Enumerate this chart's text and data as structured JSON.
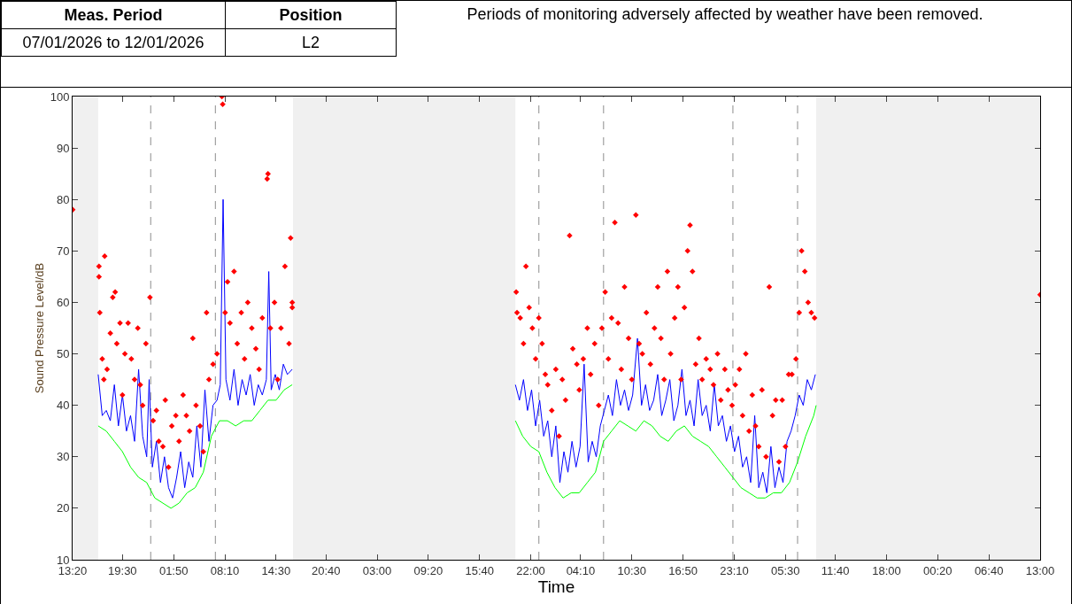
{
  "chart_data": {
    "type": "line",
    "xlabel": "Time",
    "ylabel": "Sound Pressure Level/dB",
    "annotations": [
      "Meas. Period",
      "Position",
      "07/01/2026 to 12/01/2026",
      "L2",
      "Periods of monitoring adversely affected by weather have been removed."
    ],
    "xlim": [
      "2026-01-07T13:20",
      "2026-01-12T13:00"
    ],
    "ylim": [
      10,
      100
    ],
    "xticks": [
      {
        "value": "2026-01-07T13:20",
        "label": "13:20"
      },
      {
        "value": "2026-01-07T19:30",
        "label": "19:30"
      },
      {
        "value": "2026-01-08T01:50",
        "label": "01:50"
      },
      {
        "value": "2026-01-08T08:10",
        "label": "08:10"
      },
      {
        "value": "2026-01-08T14:30",
        "label": "14:30"
      },
      {
        "value": "2026-01-08T20:40",
        "label": "20:40"
      },
      {
        "value": "2026-01-09T03:00",
        "label": "03:00"
      },
      {
        "value": "2026-01-09T09:20",
        "label": "09:20"
      },
      {
        "value": "2026-01-09T15:40",
        "label": "15:40"
      },
      {
        "value": "2026-01-09T22:00",
        "label": "22:00"
      },
      {
        "value": "2026-01-10T04:10",
        "label": "04:10"
      },
      {
        "value": "2026-01-10T10:30",
        "label": "10:30"
      },
      {
        "value": "2026-01-10T16:50",
        "label": "16:50"
      },
      {
        "value": "2026-01-10T23:10",
        "label": "23:10"
      },
      {
        "value": "2026-01-11T05:30",
        "label": "05:30"
      },
      {
        "value": "2026-01-11T11:40",
        "label": "11:40"
      },
      {
        "value": "2026-01-11T18:00",
        "label": "18:00"
      },
      {
        "value": "2026-01-12T00:20",
        "label": "00:20"
      },
      {
        "value": "2026-01-12T06:40",
        "label": "06:40"
      },
      {
        "value": "2026-01-12T13:00",
        "label": "13:00"
      }
    ],
    "yticks": [
      10,
      20,
      30,
      40,
      50,
      60,
      70,
      80,
      90,
      100
    ],
    "grid": false,
    "legend": false,
    "bands": [
      {
        "axis": "x",
        "from": "2026-01-07T13:20",
        "to": "2026-01-07T16:30",
        "color": "#f0f0f0"
      },
      {
        "axis": "x",
        "from": "2026-01-08T16:36",
        "to": "2026-01-09T20:06",
        "color": "#f0f0f0"
      },
      {
        "axis": "x",
        "from": "2026-01-11T09:18",
        "to": "2026-01-12T13:00",
        "color": "#f0f0f0"
      }
    ],
    "ref_lines": [
      {
        "axis": "x",
        "value": "2026-01-07T23:00",
        "color": "#a0a0a0",
        "line_style": "dashed"
      },
      {
        "axis": "x",
        "value": "2026-01-08T07:00",
        "color": "#a0a0a0",
        "line_style": "dashed"
      },
      {
        "axis": "x",
        "value": "2026-01-09T23:00",
        "color": "#a0a0a0",
        "line_style": "dashed"
      },
      {
        "axis": "x",
        "value": "2026-01-10T07:00",
        "color": "#a0a0a0",
        "line_style": "dashed"
      },
      {
        "axis": "x",
        "value": "2026-01-10T23:00",
        "color": "#a0a0a0",
        "line_style": "dashed"
      },
      {
        "axis": "x",
        "value": "2026-01-11T07:00",
        "color": "#a0a0a0",
        "line_style": "dashed"
      }
    ],
    "series": [
      {
        "marker": "none",
        "line_style": "solid",
        "color": "#00ff00",
        "x": [
          "2026-01-07T16:30",
          "2026-01-07T17:30",
          "2026-01-07T18:30",
          "2026-01-07T19:30",
          "2026-01-07T20:30",
          "2026-01-07T21:30",
          "2026-01-07T22:30",
          "2026-01-07T23:30",
          "2026-01-08T00:30",
          "2026-01-08T01:30",
          "2026-01-08T02:30",
          "2026-01-08T03:30",
          "2026-01-08T04:30",
          "2026-01-08T05:30",
          "2026-01-08T06:30",
          "2026-01-08T07:30",
          "2026-01-08T08:30",
          "2026-01-08T09:30",
          "2026-01-08T10:30",
          "2026-01-08T11:30",
          "2026-01-08T12:30",
          "2026-01-08T13:30",
          "2026-01-08T14:30",
          "2026-01-08T15:30",
          "2026-01-08T16:30",
          "2026-01-09T06:00",
          "2026-01-09T20:06",
          "2026-01-09T21:00",
          "2026-01-09T22:00",
          "2026-01-09T23:00",
          "2026-01-10T00:00",
          "2026-01-10T01:00",
          "2026-01-10T02:00",
          "2026-01-10T03:00",
          "2026-01-10T04:00",
          "2026-01-10T05:00",
          "2026-01-10T06:00",
          "2026-01-10T07:00",
          "2026-01-10T08:00",
          "2026-01-10T09:00",
          "2026-01-10T10:00",
          "2026-01-10T11:00",
          "2026-01-10T12:00",
          "2026-01-10T13:00",
          "2026-01-10T14:00",
          "2026-01-10T15:00",
          "2026-01-10T16:00",
          "2026-01-10T17:00",
          "2026-01-10T18:00",
          "2026-01-10T19:00",
          "2026-01-10T20:00",
          "2026-01-10T21:00",
          "2026-01-10T22:00",
          "2026-01-10T23:00",
          "2026-01-11T00:00",
          "2026-01-11T01:00",
          "2026-01-11T02:00",
          "2026-01-11T03:00",
          "2026-01-11T04:00",
          "2026-01-11T05:00",
          "2026-01-11T06:00",
          "2026-01-11T07:00",
          "2026-01-11T08:00",
          "2026-01-11T09:00",
          "2026-01-11T09:18"
        ],
        "values": [
          36,
          35,
          33,
          31,
          28,
          26,
          25,
          22,
          21,
          20,
          21,
          23,
          24,
          27,
          34,
          37,
          37,
          36,
          37,
          37,
          39,
          41,
          41,
          43,
          44,
          null,
          37,
          34,
          32,
          31,
          27,
          24,
          22,
          23,
          23,
          25,
          27,
          33,
          35,
          37,
          36,
          35,
          37,
          36,
          34,
          33,
          35,
          36,
          34,
          33,
          32,
          30,
          28,
          26,
          24,
          23,
          22,
          22,
          23,
          23,
          25,
          29,
          34,
          38,
          40
        ]
      },
      {
        "marker": "none",
        "line_style": "solid",
        "color": "#0000ff",
        "x": [
          "2026-01-07T16:30",
          "2026-01-07T17:00",
          "2026-01-07T17:30",
          "2026-01-07T18:00",
          "2026-01-07T18:30",
          "2026-01-07T19:00",
          "2026-01-07T19:30",
          "2026-01-07T20:00",
          "2026-01-07T20:30",
          "2026-01-07T21:00",
          "2026-01-07T21:30",
          "2026-01-07T22:00",
          "2026-01-07T22:30",
          "2026-01-07T22:48",
          "2026-01-07T23:12",
          "2026-01-07T23:42",
          "2026-01-08T00:12",
          "2026-01-08T00:42",
          "2026-01-08T01:12",
          "2026-01-08T01:42",
          "2026-01-08T02:12",
          "2026-01-08T02:42",
          "2026-01-08T03:12",
          "2026-01-08T03:42",
          "2026-01-08T04:12",
          "2026-01-08T04:42",
          "2026-01-08T05:12",
          "2026-01-08T05:42",
          "2026-01-08T06:12",
          "2026-01-08T06:42",
          "2026-01-08T07:12",
          "2026-01-08T07:36",
          "2026-01-08T07:57",
          "2026-01-08T08:18",
          "2026-01-08T08:48",
          "2026-01-08T09:18",
          "2026-01-08T09:48",
          "2026-01-08T10:18",
          "2026-01-08T10:48",
          "2026-01-08T11:18",
          "2026-01-08T11:48",
          "2026-01-08T12:18",
          "2026-01-08T12:48",
          "2026-01-08T13:18",
          "2026-01-08T13:36",
          "2026-01-08T13:54",
          "2026-01-08T14:24",
          "2026-01-08T14:54",
          "2026-01-08T15:24",
          "2026-01-08T15:54",
          "2026-01-08T16:30",
          "2026-01-09T06:00",
          "2026-01-09T20:06",
          "2026-01-09T20:36",
          "2026-01-09T21:06",
          "2026-01-09T21:36",
          "2026-01-09T22:06",
          "2026-01-09T22:36",
          "2026-01-09T23:06",
          "2026-01-09T23:36",
          "2026-01-10T00:06",
          "2026-01-10T00:36",
          "2026-01-10T01:06",
          "2026-01-10T01:36",
          "2026-01-10T02:06",
          "2026-01-10T02:36",
          "2026-01-10T03:06",
          "2026-01-10T03:36",
          "2026-01-10T04:06",
          "2026-01-10T04:36",
          "2026-01-10T05:06",
          "2026-01-10T05:36",
          "2026-01-10T06:06",
          "2026-01-10T06:36",
          "2026-01-10T07:06",
          "2026-01-10T07:36",
          "2026-01-10T08:06",
          "2026-01-10T08:36",
          "2026-01-10T09:06",
          "2026-01-10T09:36",
          "2026-01-10T10:06",
          "2026-01-10T10:36",
          "2026-01-10T11:12",
          "2026-01-10T11:42",
          "2026-01-10T12:12",
          "2026-01-10T12:42",
          "2026-01-10T13:12",
          "2026-01-10T13:42",
          "2026-01-10T14:12",
          "2026-01-10T14:42",
          "2026-01-10T15:12",
          "2026-01-10T15:42",
          "2026-01-10T16:12",
          "2026-01-10T16:42",
          "2026-01-10T17:12",
          "2026-01-10T17:42",
          "2026-01-10T18:12",
          "2026-01-10T18:42",
          "2026-01-10T19:12",
          "2026-01-10T19:42",
          "2026-01-10T20:12",
          "2026-01-10T20:42",
          "2026-01-10T21:12",
          "2026-01-10T21:42",
          "2026-01-10T22:12",
          "2026-01-10T22:42",
          "2026-01-10T23:12",
          "2026-01-10T23:42",
          "2026-01-11T00:12",
          "2026-01-11T00:42",
          "2026-01-11T01:12",
          "2026-01-11T01:42",
          "2026-01-11T02:12",
          "2026-01-11T02:42",
          "2026-01-11T03:12",
          "2026-01-11T03:42",
          "2026-01-11T04:12",
          "2026-01-11T04:42",
          "2026-01-11T05:12",
          "2026-01-11T05:42",
          "2026-01-11T06:12",
          "2026-01-11T06:42",
          "2026-01-11T07:12",
          "2026-01-11T07:42",
          "2026-01-11T08:12",
          "2026-01-11T08:42",
          "2026-01-11T09:12"
        ],
        "values": [
          46,
          38,
          39,
          37,
          44,
          36,
          42,
          35,
          38,
          33,
          47,
          34,
          30,
          45,
          28,
          33,
          25,
          30,
          24,
          22,
          26,
          31,
          24,
          29,
          26,
          36,
          28,
          43,
          33,
          40,
          41,
          44,
          80,
          45,
          41,
          47,
          40,
          45,
          42,
          46,
          40,
          44,
          42,
          45,
          66,
          43,
          46,
          43,
          48,
          46,
          47,
          null,
          44,
          41,
          45,
          39,
          43,
          36,
          41,
          34,
          37,
          30,
          36,
          25,
          31,
          27,
          33,
          28,
          32,
          48,
          29,
          33,
          30,
          36,
          39,
          42,
          38,
          45,
          40,
          43,
          39,
          42,
          53,
          40,
          44,
          39,
          41,
          46,
          38,
          41,
          45,
          37,
          40,
          47,
          38,
          41,
          36,
          45,
          38,
          40,
          35,
          44,
          36,
          38,
          33,
          36,
          31,
          34,
          28,
          30,
          25,
          38,
          24,
          27,
          23,
          32,
          24,
          28,
          25,
          33,
          35,
          38,
          42,
          40,
          45,
          43,
          46
        ]
      },
      {
        "type": "scatter",
        "marker": "diamond",
        "color": "#ff0000",
        "x": [
          "2026-01-07T13:21",
          "2026-01-07T16:36",
          "2026-01-07T16:36",
          "2026-01-07T17:18",
          "2026-01-07T16:42",
          "2026-01-07T17:00",
          "2026-01-07T17:12",
          "2026-01-07T17:36",
          "2026-01-07T18:00",
          "2026-01-07T18:18",
          "2026-01-07T18:36",
          "2026-01-07T18:48",
          "2026-01-07T19:12",
          "2026-01-07T19:30",
          "2026-01-07T19:48",
          "2026-01-07T20:12",
          "2026-01-07T20:36",
          "2026-01-07T21:00",
          "2026-01-07T21:24",
          "2026-01-07T21:42",
          "2026-01-07T22:00",
          "2026-01-07T22:24",
          "2026-01-07T22:54",
          "2026-01-07T23:18",
          "2026-01-07T23:42",
          "2026-01-08T00:00",
          "2026-01-08T00:30",
          "2026-01-08T00:48",
          "2026-01-08T01:12",
          "2026-01-08T01:36",
          "2026-01-08T02:06",
          "2026-01-08T02:30",
          "2026-01-08T03:00",
          "2026-01-08T03:24",
          "2026-01-08T03:48",
          "2026-01-08T04:12",
          "2026-01-08T04:36",
          "2026-01-08T05:06",
          "2026-01-08T05:30",
          "2026-01-08T05:54",
          "2026-01-08T06:12",
          "2026-01-08T06:42",
          "2026-01-08T07:12",
          "2026-01-08T07:48",
          "2026-01-08T07:54",
          "2026-01-08T08:12",
          "2026-01-08T08:30",
          "2026-01-08T08:48",
          "2026-01-08T09:18",
          "2026-01-08T09:42",
          "2026-01-08T10:12",
          "2026-01-08T10:36",
          "2026-01-08T11:00",
          "2026-01-08T11:30",
          "2026-01-08T12:00",
          "2026-01-08T12:24",
          "2026-01-08T12:48",
          "2026-01-08T13:24",
          "2026-01-08T13:30",
          "2026-01-08T13:48",
          "2026-01-08T14:18",
          "2026-01-08T14:42",
          "2026-01-08T15:06",
          "2026-01-08T15:36",
          "2026-01-08T16:06",
          "2026-01-08T16:18",
          "2026-01-08T16:30",
          "2026-01-08T16:30",
          "2026-01-09T20:12",
          "2026-01-09T20:18",
          "2026-01-09T20:42",
          "2026-01-09T21:06",
          "2026-01-09T21:24",
          "2026-01-09T21:48",
          "2026-01-09T22:12",
          "2026-01-09T22:36",
          "2026-01-09T23:00",
          "2026-01-09T23:24",
          "2026-01-09T23:48",
          "2026-01-10T00:06",
          "2026-01-10T00:36",
          "2026-01-10T01:06",
          "2026-01-10T01:30",
          "2026-01-10T01:54",
          "2026-01-10T02:18",
          "2026-01-10T02:48",
          "2026-01-10T03:12",
          "2026-01-10T03:42",
          "2026-01-10T04:00",
          "2026-01-10T04:30",
          "2026-01-10T05:00",
          "2026-01-10T05:24",
          "2026-01-10T05:54",
          "2026-01-10T06:24",
          "2026-01-10T06:48",
          "2026-01-10T07:12",
          "2026-01-10T07:36",
          "2026-01-10T08:00",
          "2026-01-10T08:24",
          "2026-01-10T08:48",
          "2026-01-10T09:12",
          "2026-01-10T09:36",
          "2026-01-10T10:06",
          "2026-01-10T10:30",
          "2026-01-10T11:00",
          "2026-01-10T11:24",
          "2026-01-10T11:48",
          "2026-01-10T12:18",
          "2026-01-10T12:48",
          "2026-01-10T13:18",
          "2026-01-10T13:42",
          "2026-01-10T14:06",
          "2026-01-10T14:30",
          "2026-01-10T14:54",
          "2026-01-10T15:18",
          "2026-01-10T15:48",
          "2026-01-10T16:12",
          "2026-01-10T16:36",
          "2026-01-10T17:00",
          "2026-01-10T17:24",
          "2026-01-10T17:42",
          "2026-01-10T18:00",
          "2026-01-10T18:24",
          "2026-01-10T18:48",
          "2026-01-10T19:12",
          "2026-01-10T19:42",
          "2026-01-10T20:12",
          "2026-01-10T20:36",
          "2026-01-10T21:06",
          "2026-01-10T21:30",
          "2026-01-10T22:00",
          "2026-01-10T22:24",
          "2026-01-10T22:54",
          "2026-01-10T23:18",
          "2026-01-10T23:48",
          "2026-01-11T00:12",
          "2026-01-11T00:36",
          "2026-01-11T01:00",
          "2026-01-11T01:24",
          "2026-01-11T01:48",
          "2026-01-11T02:12",
          "2026-01-11T02:36",
          "2026-01-11T03:06",
          "2026-01-11T03:30",
          "2026-01-11T03:54",
          "2026-01-11T04:18",
          "2026-01-11T04:42",
          "2026-01-11T05:06",
          "2026-01-11T05:30",
          "2026-01-11T05:54",
          "2026-01-11T06:18",
          "2026-01-11T06:48",
          "2026-01-11T07:12",
          "2026-01-11T07:30",
          "2026-01-11T07:54",
          "2026-01-11T08:18",
          "2026-01-11T08:42",
          "2026-01-11T09:06",
          "2026-01-12T13:00"
        ],
        "values": [
          78,
          67,
          65,
          69,
          58,
          49,
          45,
          47,
          54,
          61,
          62,
          52,
          56,
          42,
          50,
          56,
          49,
          45,
          55,
          44,
          40,
          52,
          61,
          37,
          39,
          33,
          32,
          41,
          28,
          36,
          38,
          33,
          42,
          38,
          35,
          53,
          40,
          36,
          31,
          58,
          45,
          48,
          50,
          100,
          98.5,
          58,
          64,
          56,
          66,
          52,
          58,
          49,
          60,
          55,
          51,
          47,
          57,
          84,
          85,
          55,
          60,
          45,
          55,
          67,
          52,
          72.5,
          60,
          59,
          62,
          58,
          57,
          52,
          67,
          59,
          55,
          49,
          57,
          52,
          46,
          44,
          39,
          47,
          34,
          45,
          41,
          73,
          51,
          48,
          43,
          49,
          55,
          46,
          52,
          40,
          55,
          62,
          49,
          57,
          75.5,
          56,
          47,
          63,
          53,
          45,
          77,
          52,
          50,
          58,
          48,
          55,
          63,
          53,
          45,
          66,
          50,
          57,
          63,
          45,
          59,
          70,
          75,
          66,
          48,
          53,
          45,
          49,
          47,
          44,
          50,
          41,
          47,
          43,
          40,
          44,
          47,
          38,
          50,
          35,
          42,
          36,
          32,
          43,
          30,
          63,
          38,
          41,
          29,
          41,
          32,
          46,
          46,
          49,
          58,
          70,
          66,
          60,
          58,
          57,
          61.5
        ]
      }
    ]
  }
}
